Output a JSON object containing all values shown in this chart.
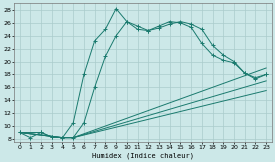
{
  "xlabel": "Humidex (Indice chaleur)",
  "bg_color": "#cce8e8",
  "grid_color": "#aacccc",
  "line_color": "#1a7a6e",
  "xlim": [
    -0.5,
    23.5
  ],
  "ylim": [
    7.5,
    29
  ],
  "xticks": [
    0,
    1,
    2,
    3,
    4,
    5,
    6,
    7,
    8,
    9,
    10,
    11,
    12,
    13,
    14,
    15,
    16,
    17,
    18,
    19,
    20,
    21,
    22,
    23
  ],
  "yticks": [
    8,
    10,
    12,
    14,
    16,
    18,
    20,
    22,
    24,
    26,
    28
  ],
  "line1_x": [
    0,
    1,
    2,
    3,
    4,
    5,
    6,
    7,
    8,
    9,
    10,
    11,
    12,
    13,
    14,
    15,
    16,
    17,
    18,
    19,
    20,
    21,
    22,
    23
  ],
  "line1_y": [
    9.0,
    8.2,
    9.0,
    8.3,
    8.2,
    10.5,
    18.0,
    23.2,
    25.0,
    28.2,
    26.2,
    25.0,
    24.8,
    25.5,
    26.2,
    26.0,
    25.3,
    22.8,
    21.0,
    20.2,
    19.8,
    18.2,
    17.5,
    18.0
  ],
  "line2_x": [
    0,
    2,
    3,
    4,
    5,
    6,
    7,
    8,
    9,
    10,
    11,
    12,
    13,
    14,
    15,
    16,
    17,
    18,
    19,
    20,
    21,
    22,
    23
  ],
  "line2_y": [
    9.0,
    9.0,
    8.3,
    8.2,
    8.2,
    10.5,
    16.0,
    20.8,
    24.0,
    26.2,
    25.5,
    24.8,
    25.2,
    25.8,
    26.2,
    25.8,
    25.0,
    22.5,
    21.0,
    20.0,
    18.2,
    17.3,
    18.0
  ],
  "line3_x": [
    0,
    4,
    5,
    23
  ],
  "line3_y": [
    9.0,
    8.2,
    8.2,
    19.0
  ],
  "line4_x": [
    0,
    4,
    5,
    23
  ],
  "line4_y": [
    9.0,
    8.2,
    8.2,
    17.0
  ],
  "line5_x": [
    0,
    4,
    5,
    23
  ],
  "line5_y": [
    9.0,
    8.2,
    8.2,
    15.5
  ]
}
